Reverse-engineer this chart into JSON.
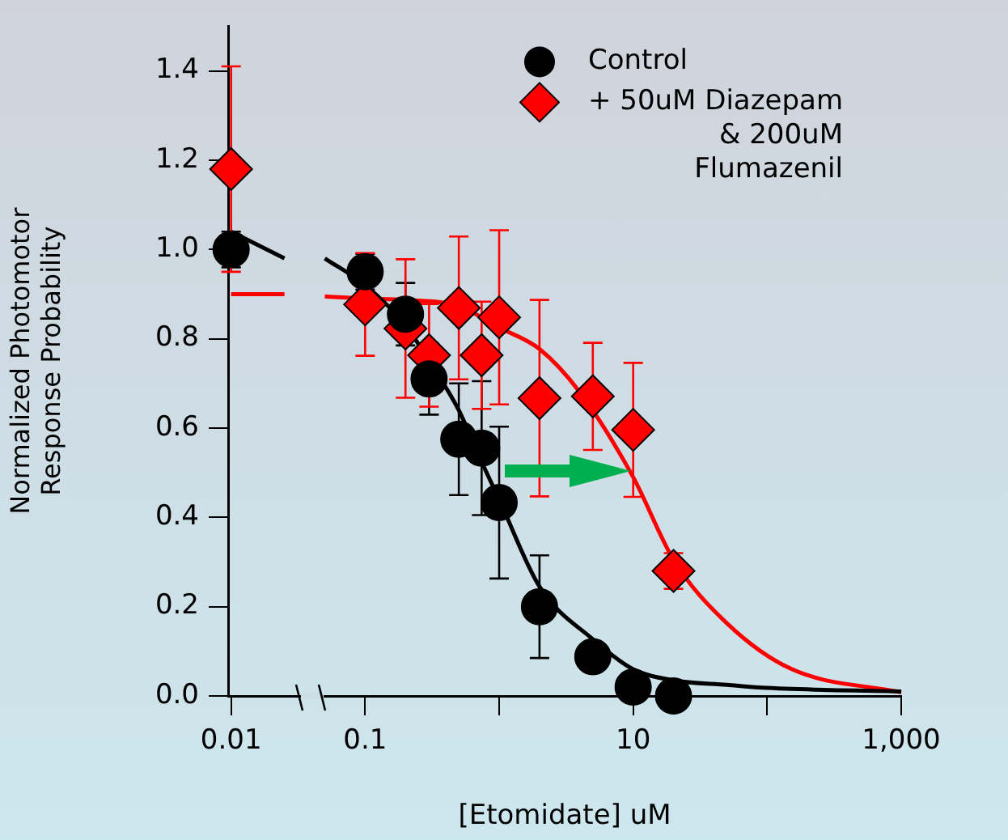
{
  "chart_data": {
    "type": "scatter",
    "xlabel": "[Etomidate] uM",
    "ylabel": "Normalized Photomotor Response Probability",
    "log": "x",
    "xlim": [
      0.0095,
      1000
    ],
    "xticks": [
      0.01,
      0.1,
      {
        "value": 1,
        "label": null
      },
      10,
      {
        "value": 100,
        "label": null
      },
      {
        "value": 1000,
        "label": "1,000"
      }
    ],
    "ylim": [
      0,
      1.5
    ],
    "yticks": [
      {
        "value": 0,
        "label": "0.0"
      },
      0.2,
      0.4,
      0.6,
      0.8,
      {
        "value": 1,
        "label": "1.0"
      },
      1.2,
      1.4
    ],
    "grid": false,
    "legend": "top right",
    "series": [
      {
        "name": "Control",
        "color": "#000000",
        "marker": "circle",
        "x": [
          0.01,
          0.1,
          0.2,
          0.3,
          0.5,
          0.74,
          1,
          2,
          5,
          10,
          20
        ],
        "values": [
          1.0,
          0.95,
          0.855,
          0.71,
          0.575,
          0.555,
          0.433,
          0.2,
          0.088,
          0.02,
          0.0
        ],
        "errors": [
          0.04,
          0.04,
          0.07,
          0.08,
          0.125,
          0.15,
          0.17,
          0.115,
          null,
          null,
          null
        ]
      },
      {
        "name": "+ 50uM Diazepam & 200uM Flumazenil",
        "color": "#ff0000",
        "marker": "diamond",
        "x": [
          0.01,
          0.1,
          0.2,
          0.3,
          0.5,
          0.74,
          1,
          2,
          5,
          10,
          20
        ],
        "values": [
          1.18,
          0.877,
          0.823,
          0.763,
          0.869,
          0.763,
          0.848,
          0.667,
          0.671,
          0.596,
          0.28
        ],
        "errors": [
          0.23,
          0.115,
          0.155,
          0.115,
          0.16,
          0.12,
          0.195,
          0.22,
          0.12,
          0.15,
          0.04
        ]
      },
      {
        "type": "line",
        "color": "#000000",
        "marker": "none",
        "x": [
          0.01,
          0.025,
          0.035,
          0.05,
          0.1,
          0.2,
          0.3,
          0.5,
          0.7,
          1,
          2,
          5,
          10,
          20,
          50,
          100,
          1000
        ],
        "values": [
          1.04,
          0.98,
          null,
          0.98,
          0.92,
          0.83,
          0.75,
          0.64,
          0.54,
          0.44,
          0.245,
          0.127,
          0.06,
          0.035,
          0.025,
          0.018,
          0.01
        ]
      },
      {
        "type": "line",
        "color": "#ff0000",
        "marker": "none",
        "x": [
          0.01,
          0.025,
          0.035,
          0.05,
          0.1,
          0.2,
          0.5,
          1,
          2,
          4,
          10,
          20,
          50,
          150,
          1000
        ],
        "values": [
          0.9,
          0.9,
          null,
          0.895,
          0.89,
          0.887,
          0.873,
          0.825,
          0.777,
          0.68,
          0.49,
          0.305,
          0.163,
          0.061,
          0.008
        ]
      }
    ]
  }
}
